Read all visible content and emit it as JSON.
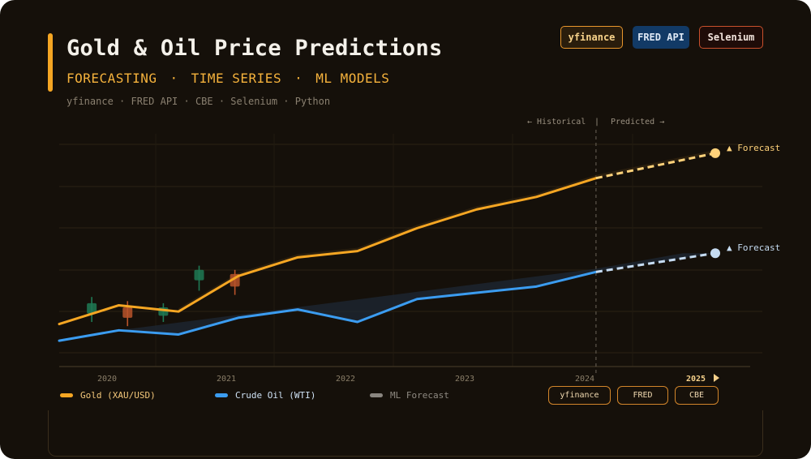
{
  "header": {
    "title": "Gold & Oil Price Predictions",
    "tags": [
      "FORECASTING",
      "TIME SERIES",
      "ML MODELS"
    ],
    "tag_separator": "·",
    "sources_line": "yfinance · FRED API · CBE · Selenium · Python"
  },
  "badges": [
    {
      "label": "yfinance",
      "color": "#e8962c"
    },
    {
      "label": "FRED API",
      "color": "#123a66"
    },
    {
      "label": "Selenium",
      "color": "#c9502c"
    }
  ],
  "phase_labels": {
    "historical": "← Historical",
    "divider": "|",
    "predicted": "Predicted →"
  },
  "source_buttons": [
    "yfinance",
    "FRED",
    "CBE"
  ],
  "chart_data": {
    "type": "line",
    "title": "Gold & Oil Price Predictions",
    "xlabel": "",
    "ylabel": "",
    "x_ticks": [
      "2020",
      "2021",
      "2022",
      "2023",
      "2024",
      "2025"
    ],
    "x_tick_highlight": "2025",
    "x_range": [
      2019.6,
      2025.1
    ],
    "y_range": [
      0,
      100
    ],
    "y_units": "normalized (no axis labels shown)",
    "grid": true,
    "legend_position": "bottom-left",
    "forecast_start": 2024.1,
    "x": [
      2019.6,
      2020.1,
      2020.6,
      2021.1,
      2021.6,
      2022.1,
      2022.6,
      2023.1,
      2023.6,
      2024.1
    ],
    "series": [
      {
        "name": "Gold (XAU/USD)",
        "color": "#f5a623",
        "values": [
          20,
          29,
          26,
          43,
          52,
          55,
          66,
          75,
          81,
          90
        ],
        "forecast": {
          "x": [
            2024.1,
            2025.1
          ],
          "values": [
            90,
            102
          ],
          "label": "▲ Forecast",
          "color": "#ffd27a"
        }
      },
      {
        "name": "Crude Oil (WTI)",
        "color": "#3b9cf0",
        "values": [
          12,
          17,
          15,
          23,
          27,
          21,
          32,
          35,
          38,
          45
        ],
        "forecast": {
          "x": [
            2024.1,
            2025.1
          ],
          "values": [
            45,
            54
          ],
          "label": "▲ Forecast",
          "color": "#c6dcf2"
        }
      },
      {
        "name": "ML Forecast",
        "color": "#8a8680",
        "values": []
      }
    ],
    "candlesticks": [
      {
        "x": 2019.9,
        "open": 25,
        "close": 30,
        "high": 33,
        "low": 21,
        "dir": "up"
      },
      {
        "x": 2020.2,
        "open": 28,
        "close": 23,
        "high": 31,
        "low": 19,
        "dir": "down"
      },
      {
        "x": 2020.5,
        "open": 24,
        "close": 28,
        "high": 30,
        "low": 21,
        "dir": "up"
      },
      {
        "x": 2020.8,
        "open": 41,
        "close": 46,
        "high": 48,
        "low": 36,
        "dir": "up"
      },
      {
        "x": 2021.1,
        "open": 44,
        "close": 38,
        "high": 46,
        "low": 34,
        "dir": "down"
      }
    ],
    "candle_colors": {
      "up": "#1f7a55",
      "down": "#b9532a"
    }
  }
}
